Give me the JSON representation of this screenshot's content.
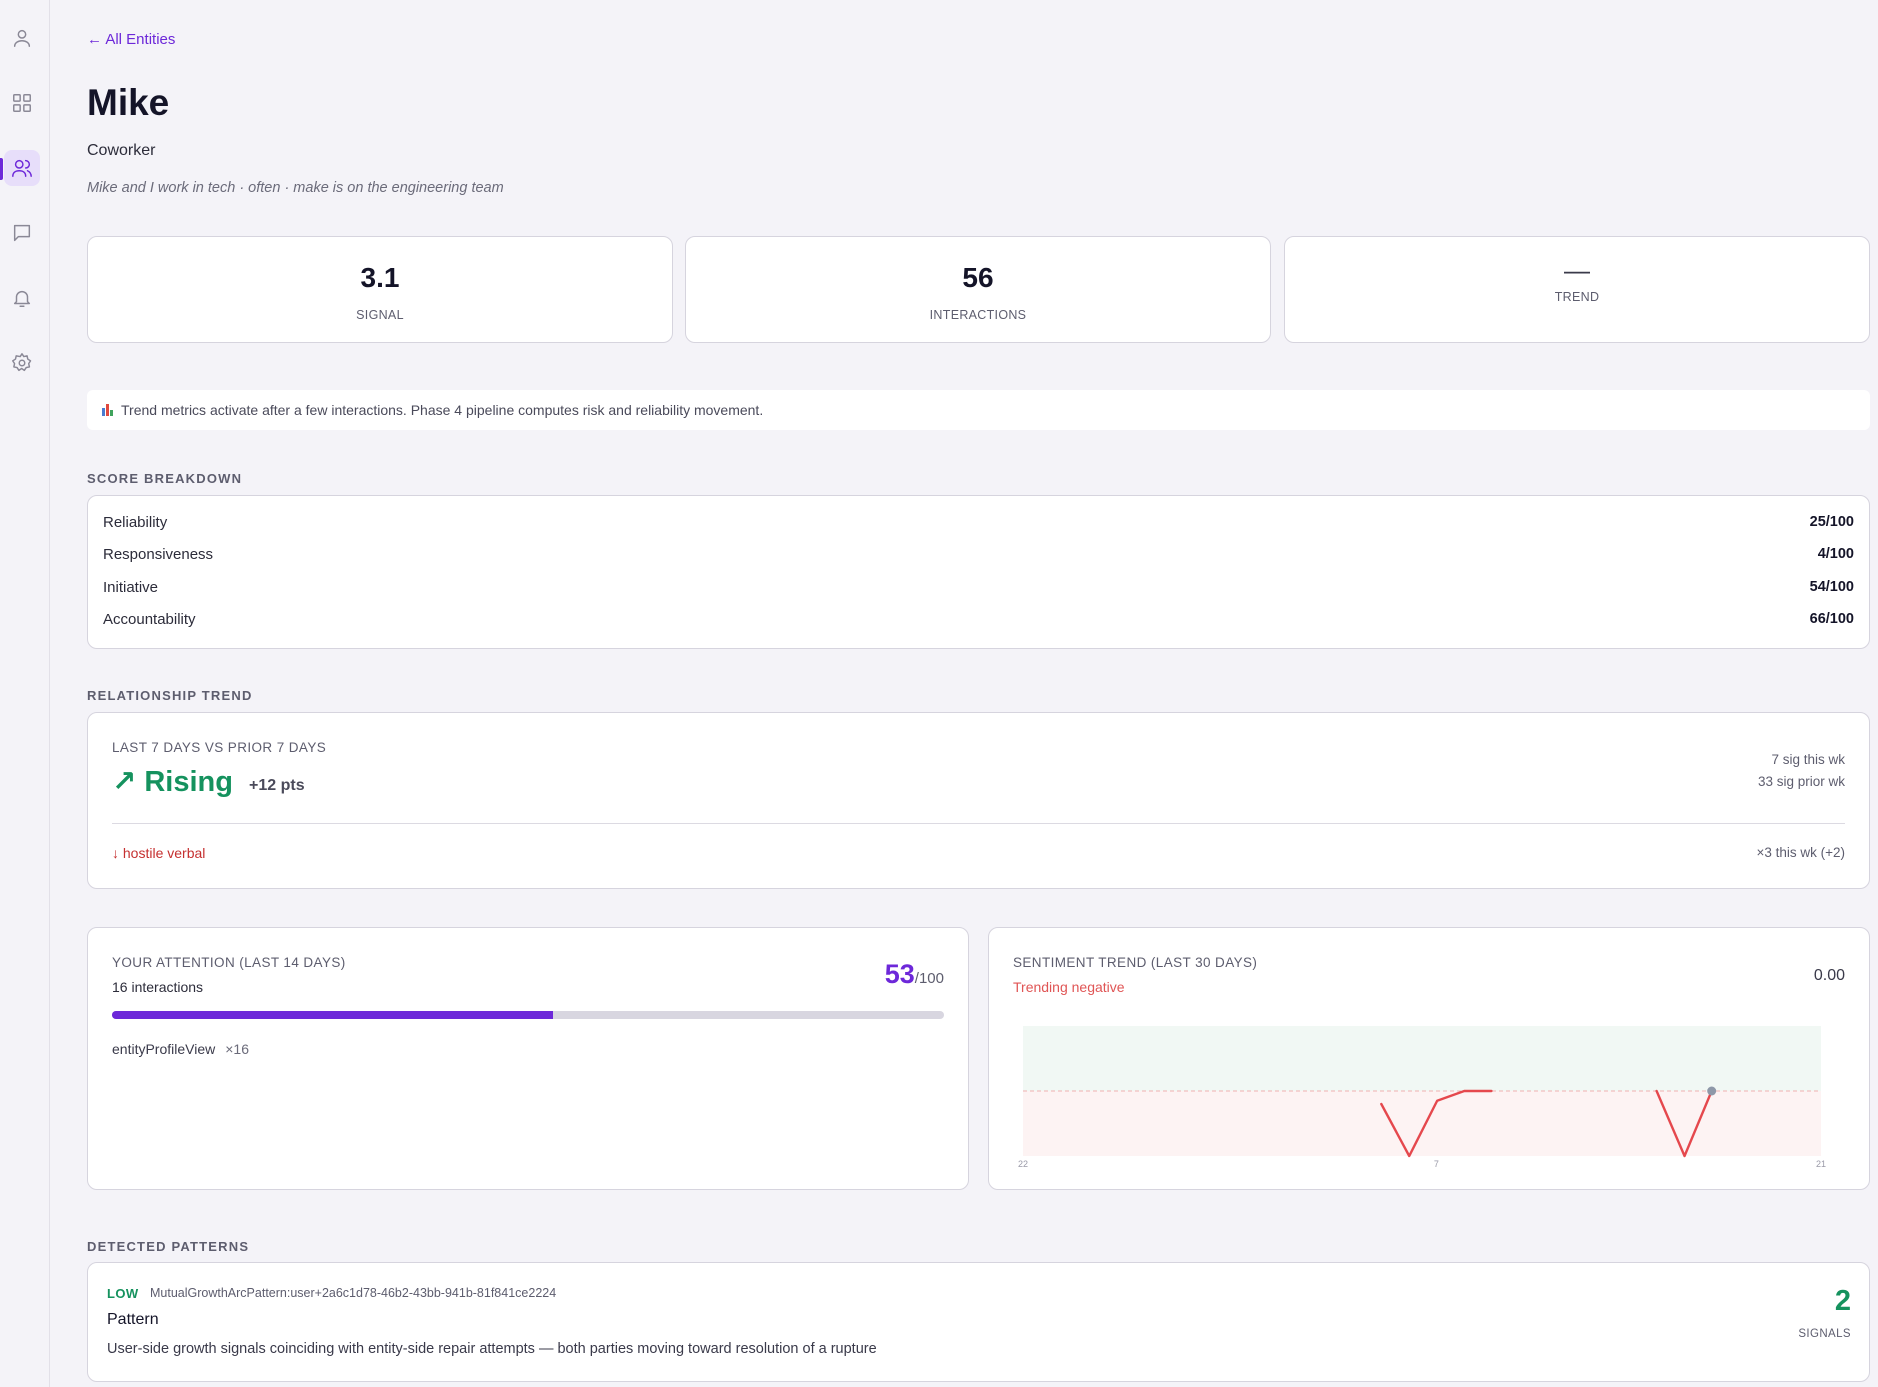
{
  "sidebar": {
    "items": [
      {
        "name": "profile",
        "icon": "user-icon"
      },
      {
        "name": "dashboard",
        "icon": "grid-icon"
      },
      {
        "name": "entities",
        "icon": "users-icon",
        "active": true
      },
      {
        "name": "messages",
        "icon": "chat-icon"
      },
      {
        "name": "notifications",
        "icon": "bell-icon"
      },
      {
        "name": "settings",
        "icon": "gear-icon"
      }
    ]
  },
  "header": {
    "back_link": "← All Entities",
    "title": "Mike",
    "subtitle": "Coworker",
    "description": "Mike and I work in tech · often · make is on the engineering team"
  },
  "stats": {
    "signal": {
      "value": "3.1",
      "label": "SIGNAL"
    },
    "interactions": {
      "value": "56",
      "label": "INTERACTIONS"
    },
    "trend": {
      "value": "—",
      "label": "TREND"
    }
  },
  "notice": {
    "icon": "bar-chart-icon",
    "text": "Trend metrics activate after a few interactions. Phase 4 pipeline computes risk and reliability movement."
  },
  "score_breakdown": {
    "title": "SCORE BREAKDOWN",
    "rows": [
      {
        "label": "Reliability",
        "value": "25/100"
      },
      {
        "label": "Responsiveness",
        "value": "4/100"
      },
      {
        "label": "Initiative",
        "value": "54/100"
      },
      {
        "label": "Accountability",
        "value": "66/100"
      }
    ]
  },
  "relationship_trend": {
    "title": "RELATIONSHIP TREND",
    "caption": "LAST 7 DAYS VS PRIOR 7 DAYS",
    "direction": "↗ Rising",
    "delta": "+12 pts",
    "this_week": "7 sig this wk",
    "prior_week": "33 sig prior wk",
    "negative_signal": "↓ hostile verbal",
    "negative_count": "×3 this wk  (+2)"
  },
  "attention": {
    "title": "YOUR ATTENTION (LAST 14 DAYS)",
    "subtitle": "16 interactions",
    "score": "53",
    "score_suffix": "/100",
    "progress": 0.53,
    "item_label": "entityProfileView",
    "item_count": "×16"
  },
  "sentiment": {
    "title": "SENTIMENT TREND (LAST 30 DAYS)",
    "subtitle": "Trending negative",
    "value": "0.00"
  },
  "chart_data": {
    "type": "line",
    "x_tick_labels": [
      "22",
      "7",
      "21"
    ],
    "ylim": [
      -1,
      1
    ],
    "baseline": 0,
    "segments": [
      {
        "x": [
          0.449,
          0.484,
          0.519,
          0.553,
          0.587
        ],
        "y": [
          -0.2,
          -1.0,
          -0.15,
          0.0,
          0.0
        ]
      },
      {
        "x": [
          0.794,
          0.829,
          0.863
        ],
        "y": [
          0.0,
          -1.0,
          0.0
        ]
      }
    ],
    "last_point": {
      "x": 0.863,
      "y": 0.0
    },
    "colors": {
      "line": "#e5484d",
      "last_point": "#8e98a8",
      "positive_band": "#f1f8f4",
      "negative_band": "#fdf3f3"
    }
  },
  "patterns": {
    "title": "DETECTED PATTERNS",
    "items": [
      {
        "level": "LOW",
        "id": "MutualGrowthArcPattern:user+2a6c1d78-46b2-43bb-941b-81f841ce2224",
        "name": "Pattern",
        "description": "User-side growth signals coinciding with entity-side repair attempts — both parties moving toward resolution of a rupture",
        "count": "2",
        "count_label": "SIGNALS"
      }
    ]
  },
  "colors": {
    "accent": "#6d28d9",
    "positive": "#15925e",
    "negative": "#c53030",
    "background": "#f4f3f8"
  }
}
